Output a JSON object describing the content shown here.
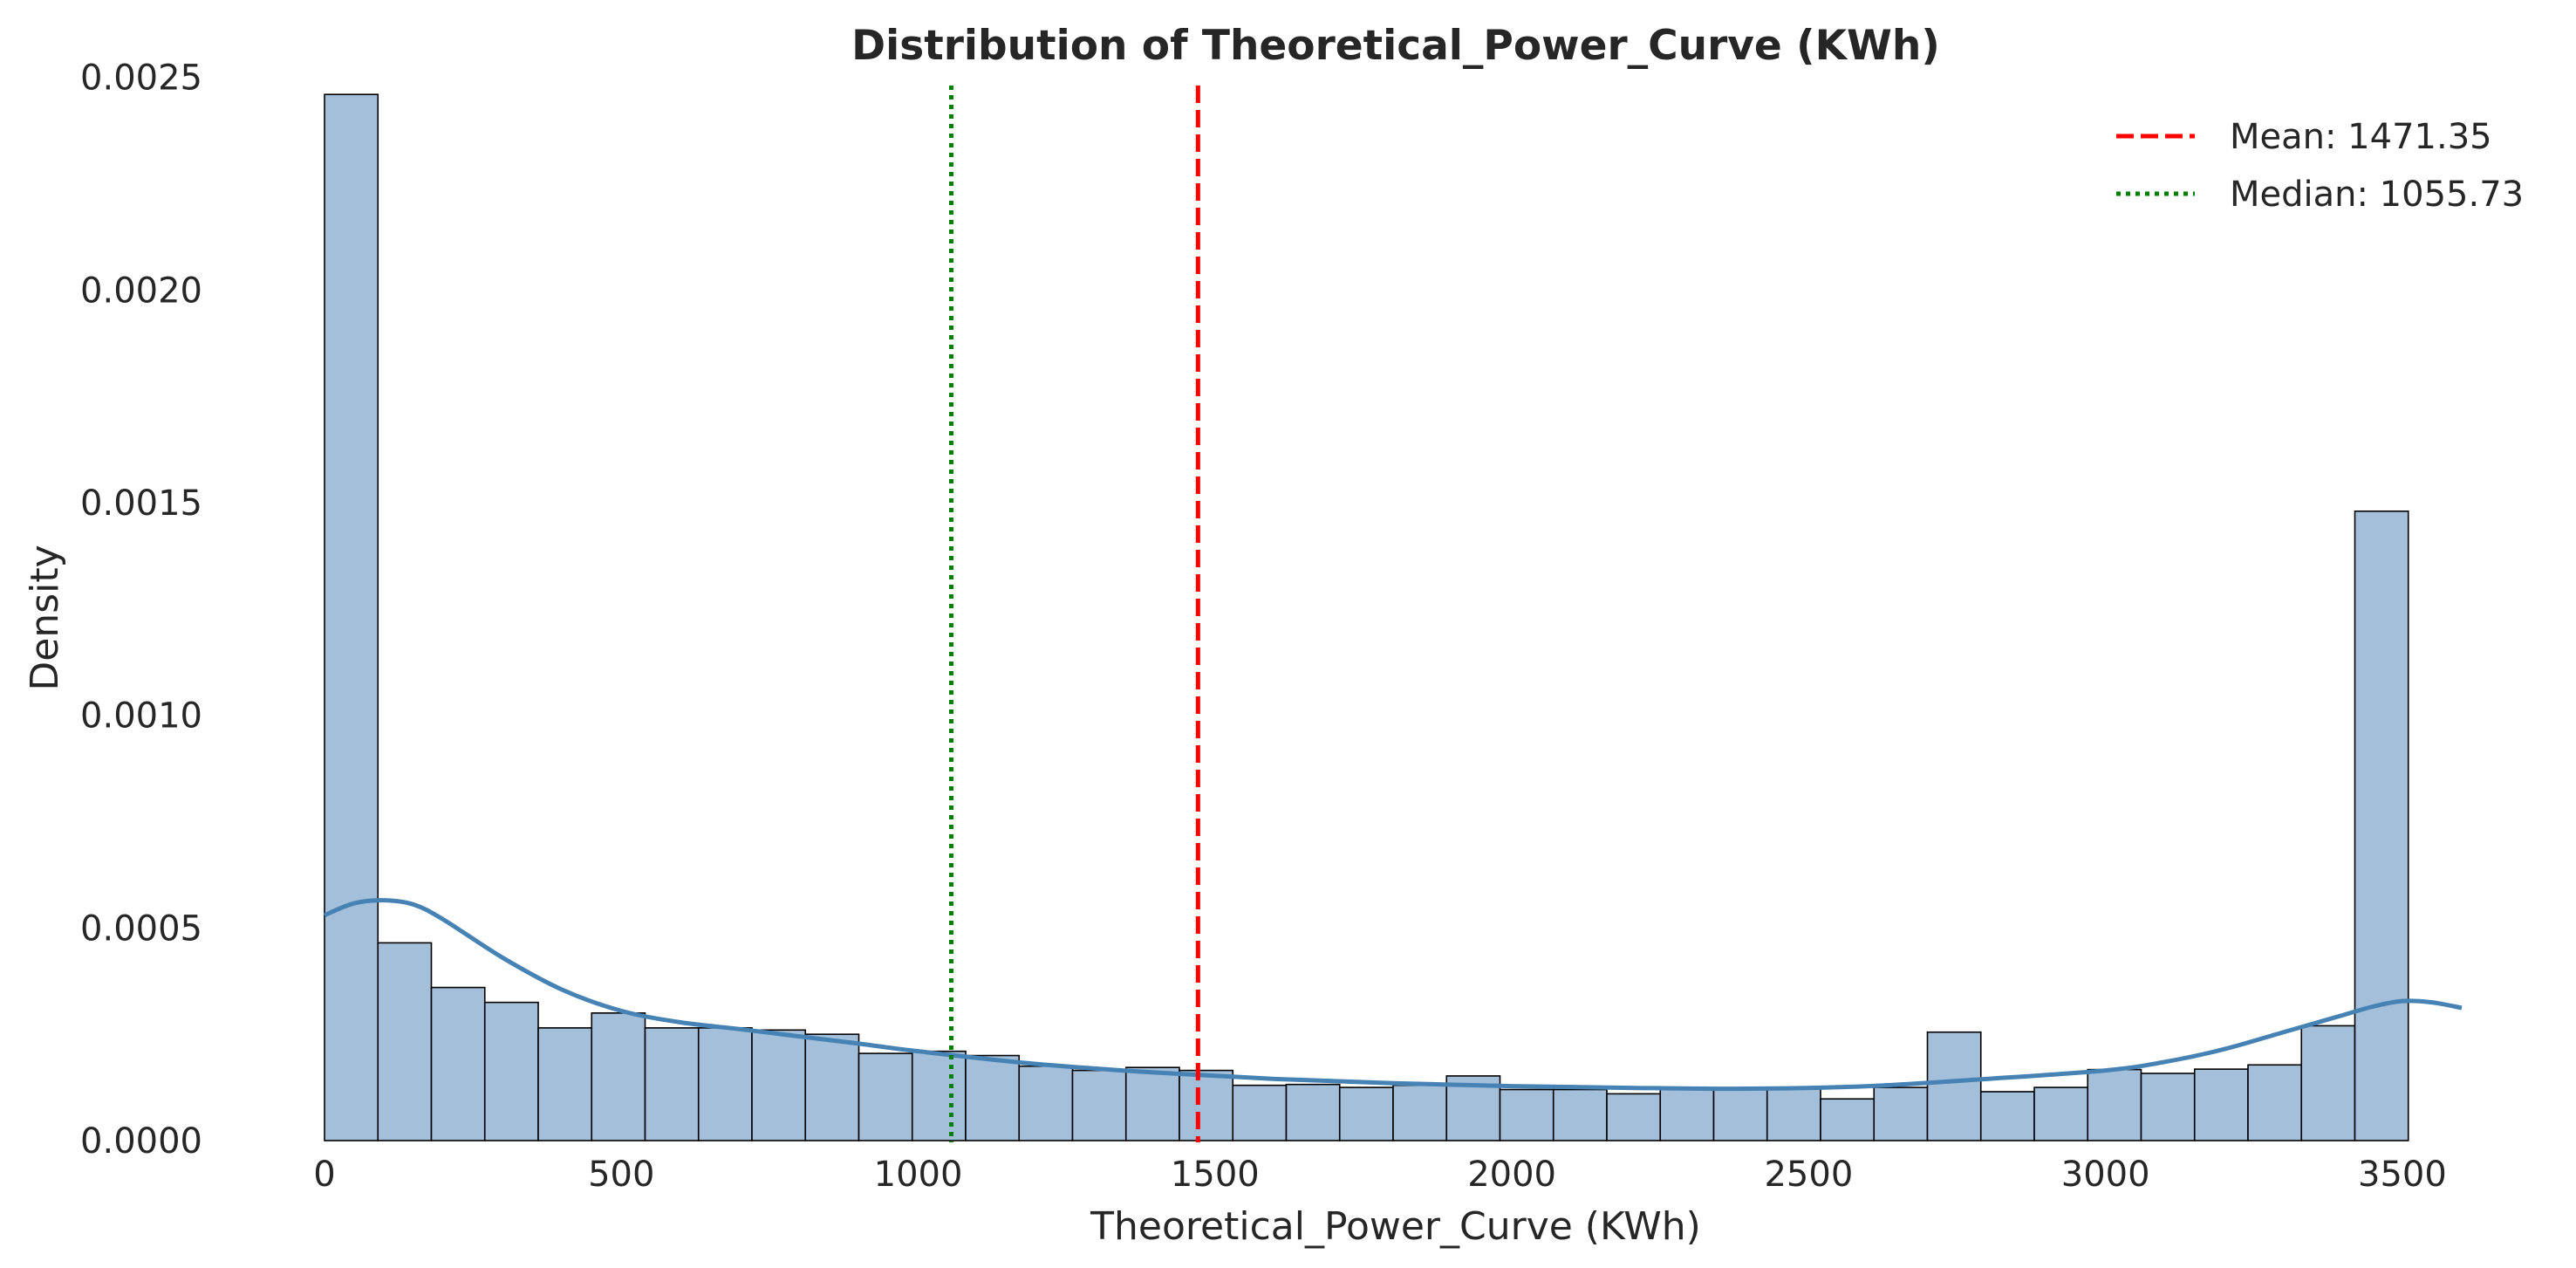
{
  "chart_data": {
    "type": "bar",
    "title": "Distribution of Theoretical_Power_Curve (KWh)",
    "xlabel": "Theoretical_Power_Curve (KWh)",
    "ylabel": "Density",
    "xlim": [
      0,
      3600
    ],
    "ylim": [
      0,
      0.0026
    ],
    "x_ticks": [
      {
        "value": 0,
        "label": "0"
      },
      {
        "value": 500,
        "label": "500"
      },
      {
        "value": 1000,
        "label": "1000"
      },
      {
        "value": 1500,
        "label": "1500"
      },
      {
        "value": 2000,
        "label": "2000"
      },
      {
        "value": 2500,
        "label": "2500"
      },
      {
        "value": 3000,
        "label": "3000"
      },
      {
        "value": 3500,
        "label": "3500"
      }
    ],
    "y_ticks": [
      {
        "value": 0,
        "label": "0.0000"
      },
      {
        "value": 0.0005,
        "label": "0.0005"
      },
      {
        "value": 0.001,
        "label": "0.0010"
      },
      {
        "value": 0.0015,
        "label": "0.0015"
      },
      {
        "value": 0.002,
        "label": "0.0020"
      },
      {
        "value": 0.0025,
        "label": "0.0025"
      }
    ],
    "bin_start": 0,
    "bin_width": 90,
    "values": [
      0.00246,
      0.000465,
      0.00036,
      0.000325,
      0.000265,
      0.0003,
      0.000265,
      0.000265,
      0.00026,
      0.00025,
      0.000205,
      0.00021,
      0.0002,
      0.000175,
      0.000165,
      0.000172,
      0.000165,
      0.00013,
      0.000132,
      0.000125,
      0.00013,
      0.000152,
      0.00012,
      0.00012,
      0.00011,
      0.00012,
      0.00012,
      0.000125,
      9.8e-05,
      0.000125,
      0.000255,
      0.000115,
      0.000125,
      0.000167,
      0.000158,
      0.000168,
      0.000178,
      0.00027,
      0.00148
    ],
    "kde": {
      "name": "KDE",
      "x": [
        0,
        50,
        100,
        150,
        200,
        300,
        400,
        500,
        600,
        700,
        800,
        900,
        1000,
        1200,
        1400,
        1600,
        1800,
        2000,
        2200,
        2400,
        2600,
        2800,
        3000,
        3100,
        3200,
        3300,
        3400,
        3450,
        3500,
        3550,
        3600
      ],
      "y": [
        0.00053,
        0.000558,
        0.000565,
        0.000555,
        0.00052,
        0.00043,
        0.000355,
        0.000305,
        0.000278,
        0.000262,
        0.000245,
        0.000228,
        0.00021,
        0.00018,
        0.00016,
        0.000145,
        0.000135,
        0.000128,
        0.000124,
        0.000122,
        0.000128,
        0.000145,
        0.000165,
        0.000185,
        0.000215,
        0.000255,
        0.000295,
        0.000315,
        0.000328,
        0.000325,
        0.000312
      ]
    },
    "reference_lines": [
      {
        "name": "mean",
        "value": 1471.35,
        "label": "Mean: 1471.35",
        "color": "#ff0000",
        "style": "dashed"
      },
      {
        "name": "median",
        "value": 1055.73,
        "label": "Median: 1055.73",
        "color": "#008000",
        "style": "dotted"
      }
    ],
    "bar_color": "#a3bfd9",
    "bar_edge_color": "#000000",
    "kde_color": "#4682b4",
    "grid": false,
    "legend_position": "top-right"
  }
}
